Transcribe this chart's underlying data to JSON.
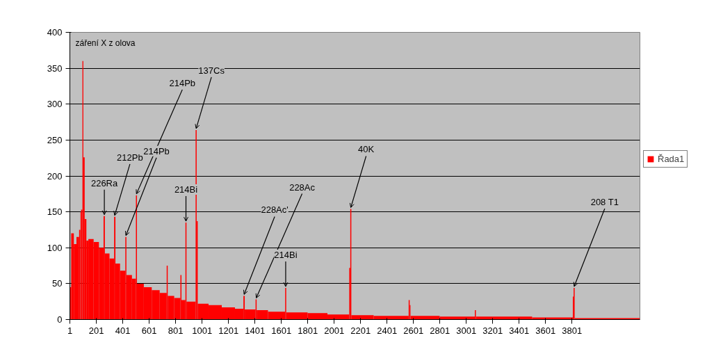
{
  "chart_data": {
    "type": "histogram",
    "bins": [
      0,
      10,
      30,
      50,
      70,
      80,
      85,
      95,
      102,
      112,
      125,
      140,
      180,
      220,
      255,
      265,
      300,
      335,
      345,
      380,
      420,
      428,
      470,
      500,
      508,
      560,
      620,
      680,
      733,
      741,
      790,
      837,
      845,
      875,
      883,
      952,
      960,
      968,
      1050,
      1150,
      1250,
      1314,
      1324,
      1406,
      1414,
      1500,
      1630,
      1638,
      1800,
      1950,
      2115,
      2123,
      2131,
      2300,
      2565,
      2573,
      2579,
      2800,
      3066,
      3074,
      3500,
      3808,
      3814,
      3822,
      4316
    ],
    "series": [
      {
        "name": "Řada1",
        "color": "#ff0000",
        "values": [
          45,
          120,
          105,
          115,
          125,
          150,
          153,
          360,
          226,
          140,
          110,
          112,
          108,
          100,
          144,
          92,
          85,
          143,
          78,
          68,
          115,
          62,
          57,
          173,
          50,
          45,
          41,
          37,
          75,
          33,
          30,
          62,
          27,
          135,
          25,
          264,
          137,
          22,
          20,
          17,
          15,
          33,
          14,
          28,
          13,
          11,
          44,
          10,
          9,
          7,
          72,
          154,
          6,
          5,
          27,
          20,
          5,
          4,
          13,
          4,
          3,
          32,
          44,
          2
        ]
      }
    ],
    "xlim": [
      0,
      4316
    ],
    "xticks": [
      1,
      201,
      401,
      601,
      801,
      1001,
      1201,
      1401,
      1601,
      1801,
      2001,
      2201,
      2401,
      2601,
      2801,
      3001,
      3201,
      3401,
      3601,
      3801
    ],
    "ylim": [
      0,
      400
    ],
    "yticks": [
      0,
      50,
      100,
      150,
      200,
      250,
      300,
      350,
      400
    ],
    "grid": "y",
    "legend": "right",
    "annotations": [
      "záření X z olova",
      {
        "text": "226Ra",
        "x": 261,
        "y": 144
      },
      {
        "text": "212Pb",
        "x": 339,
        "y": 143
      },
      {
        "text": "214Pb",
        "x": 424,
        "y": 115
      },
      {
        "text": "214Pb",
        "x": 504,
        "y": 173
      },
      {
        "text": "214Bi",
        "x": 879,
        "y": 135
      },
      {
        "text": "137Cs",
        "x": 956,
        "y": 264
      },
      {
        "text": "228Ac'",
        "x": 1319,
        "y": 33
      },
      {
        "text": "228Ac",
        "x": 1411,
        "y": 28
      },
      {
        "text": "214Bi",
        "x": 1634,
        "y": 44
      },
      {
        "text": "40K",
        "x": 2127,
        "y": 154
      },
      {
        "text": "208 T1",
        "x": 3818,
        "y": 44
      }
    ]
  }
}
